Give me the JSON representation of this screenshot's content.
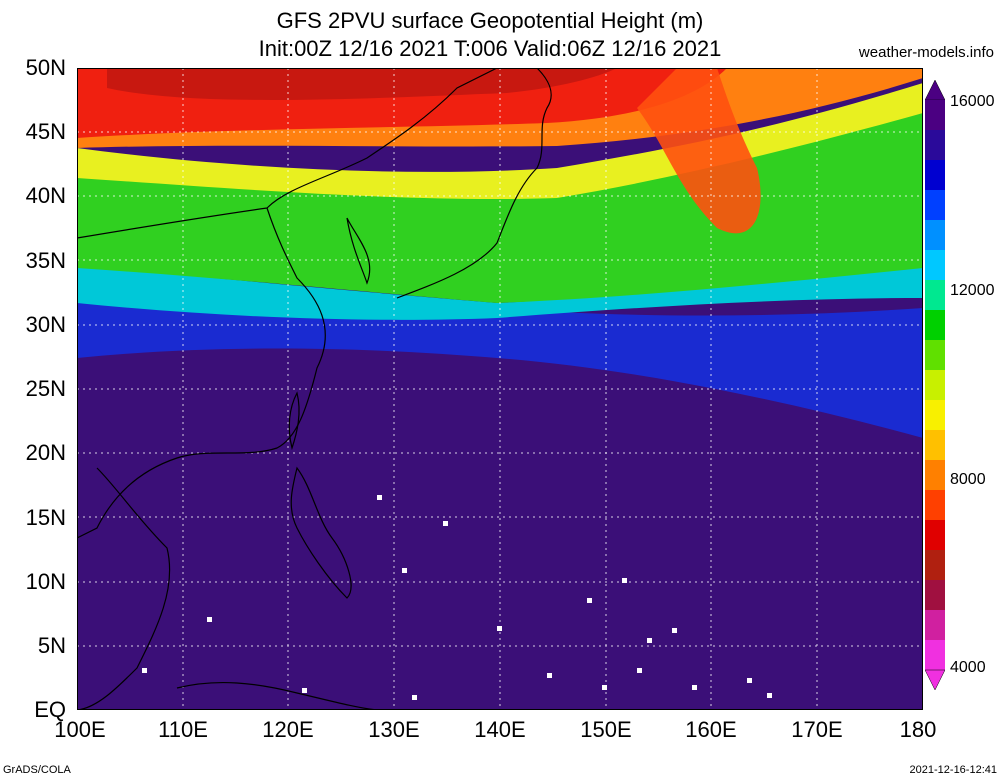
{
  "title": {
    "line1": "GFS 2PVU surface Geopotential Height (m)",
    "line2": "Init:00Z 12/16 2021 T:006 Valid:06Z 12/16 2021"
  },
  "site": "weather-models.info",
  "axes": {
    "lat_labels": [
      "50N",
      "45N",
      "40N",
      "35N",
      "30N",
      "25N",
      "20N",
      "15N",
      "10N",
      "5N",
      "EQ"
    ],
    "lon_labels": [
      "100E",
      "110E",
      "120E",
      "130E",
      "140E",
      "150E",
      "160E",
      "170E",
      "180"
    ]
  },
  "colorbar": {
    "labels": [
      "16000",
      "12000",
      "8000",
      "4000"
    ],
    "colors": [
      "#4b0082",
      "#2a0a9a",
      "#0000d0",
      "#0040ff",
      "#0090ff",
      "#00c8ff",
      "#00e890",
      "#00d000",
      "#60e000",
      "#c8f000",
      "#f8f000",
      "#ffc000",
      "#ff8000",
      "#ff4000",
      "#e00000",
      "#b02010",
      "#a01040",
      "#d020a0",
      "#f030e0"
    ]
  },
  "footer": {
    "left": "GrADS/COLA",
    "right": "2021-12-16-12:41"
  },
  "field_colors": {
    "background": "#3b0f78",
    "blue": "#1530e0",
    "cyan": "#00e0d0",
    "green": "#30d020",
    "yellow": "#f0e020",
    "orange": "#ff8010",
    "red": "#f02010",
    "darkred": "#c81810"
  }
}
